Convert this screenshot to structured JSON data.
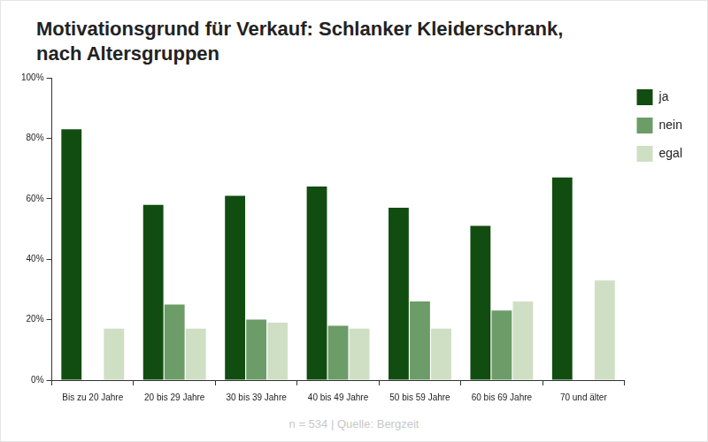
{
  "chart_data": {
    "type": "bar",
    "title": "Motivationsgrund für Verkauf: Schlanker Kleiderschrank,\nnach Altersgruppen",
    "annotations": [
      "n = 534 | Quelle: Bergzeit"
    ],
    "categories": [
      "Bis zu 20 Jahre",
      "20 bis 29 Jahre",
      "30 bis 39 Jahre",
      "40 bis 49 Jahre",
      "50 bis 59 Jahre",
      "60 bis 69 Jahre",
      "70 und älter"
    ],
    "series": [
      {
        "name": "ja",
        "color": "#114d10",
        "values": [
          83,
          58,
          61,
          64,
          57,
          51,
          67
        ]
      },
      {
        "name": "nein",
        "color": "#6c9c68",
        "values": [
          0,
          25,
          20,
          18,
          26,
          23,
          0
        ]
      },
      {
        "name": "egal",
        "color": "#cfdfc4",
        "values": [
          17,
          17,
          19,
          17,
          17,
          26,
          33
        ]
      }
    ],
    "ylim": [
      0,
      100
    ],
    "yticks": [
      {
        "value": 0,
        "label": "0%"
      },
      {
        "value": 20,
        "label": "20%"
      },
      {
        "value": 40,
        "label": "40%"
      },
      {
        "value": 60,
        "label": "60%"
      },
      {
        "value": 80,
        "label": "80%"
      },
      {
        "value": 100,
        "label": "100%"
      }
    ],
    "grid": false,
    "legend": "right"
  }
}
